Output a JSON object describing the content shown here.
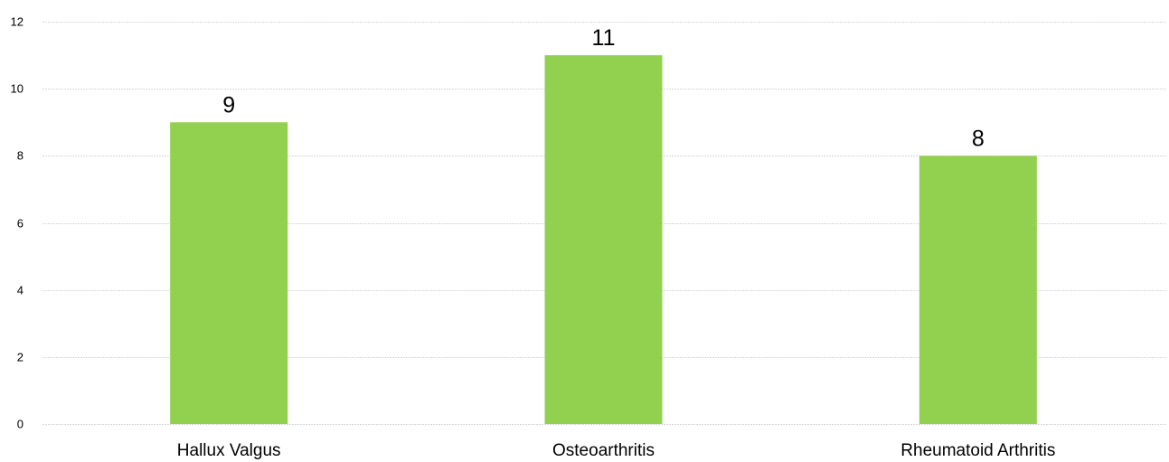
{
  "chart_data": {
    "type": "bar",
    "categories": [
      "Hallux Valgus",
      "Osteoarthritis",
      "Rheumatoid Arthritis"
    ],
    "values": [
      9,
      11,
      8
    ],
    "data_labels": [
      "9",
      "11",
      "8"
    ],
    "title": "",
    "xlabel": "",
    "ylabel": "",
    "ylim": [
      0,
      12
    ],
    "yticks": [
      0,
      2,
      4,
      6,
      8,
      10,
      12
    ],
    "ytick_labels": [
      "0",
      "2",
      "4",
      "6",
      "8",
      "10",
      "12"
    ],
    "grid": true,
    "legend": "none",
    "bar_color": "#92d050",
    "grid_color": "#d9d9d9"
  }
}
